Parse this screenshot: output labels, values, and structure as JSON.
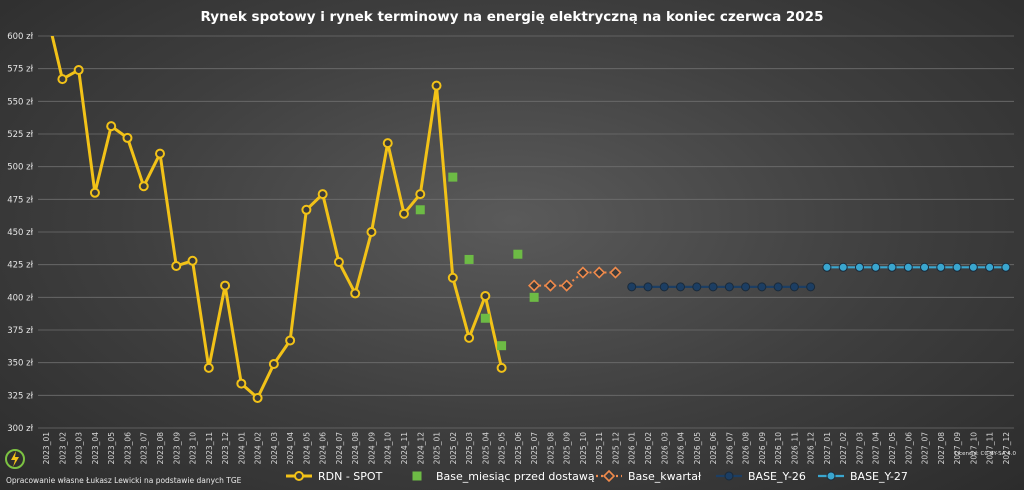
{
  "chart_data": {
    "type": "line",
    "title": "Rynek spotowy i rynek terminowy na energię elektryczną na koniec czerwca 2025",
    "ylim": [
      300,
      600
    ],
    "yticks": [
      300,
      325,
      350,
      375,
      400,
      425,
      450,
      475,
      500,
      525,
      550,
      575,
      600
    ],
    "ytick_suffix": " zł",
    "grid": true,
    "legend_position": "bottom",
    "categories": [
      "2023_01",
      "2023_02",
      "2023_03",
      "2023_04",
      "2023_05",
      "2023_06",
      "2023_07",
      "2023_08",
      "2023_09",
      "2023_10",
      "2023_11",
      "2023_12",
      "2024_01",
      "2024_02",
      "2024_03",
      "2024_04",
      "2024_05",
      "2024_06",
      "2024_07",
      "2024_08",
      "2024_09",
      "2024_10",
      "2024_11",
      "2024_12",
      "2025_01",
      "2025_02",
      "2025_03",
      "2025_04",
      "2025_05",
      "2025_06",
      "2025_07",
      "2025_08",
      "2025_09",
      "2025_10",
      "2025_11",
      "2025_12",
      "2026_01",
      "2026_02",
      "2026_03",
      "2026_04",
      "2026_05",
      "2026_06",
      "2026_07",
      "2026_08",
      "2026_09",
      "2026_10",
      "2026_11",
      "2026_12",
      "2027_01",
      "2027_02",
      "2027_03",
      "2027_04",
      "2027_05",
      "2027_06",
      "2027_07",
      "2027_08",
      "2027_09",
      "2027_10",
      "2027_11",
      "2027_12"
    ],
    "series": [
      {
        "name": "RDN - SPOT",
        "color": "#f2c218",
        "marker": "circle",
        "line": "solid",
        "values": [
          620,
          567,
          574,
          480,
          531,
          522,
          485,
          510,
          424,
          428,
          346,
          409,
          334,
          323,
          349,
          367,
          467,
          479,
          427,
          403,
          450,
          518,
          464,
          479,
          562,
          415,
          369,
          401,
          346,
          null,
          null,
          null,
          null,
          null,
          null,
          null,
          null,
          null,
          null,
          null,
          null,
          null,
          null,
          null,
          null,
          null,
          null,
          null,
          null,
          null,
          null,
          null,
          null,
          null,
          null,
          null,
          null,
          null,
          null,
          null
        ]
      },
      {
        "name": "Base_miesiąc przed dostawą",
        "color": "#6dbb45",
        "marker": "square",
        "line": "none",
        "values": [
          null,
          null,
          null,
          null,
          null,
          null,
          null,
          null,
          null,
          null,
          null,
          null,
          null,
          null,
          null,
          null,
          null,
          null,
          null,
          null,
          null,
          null,
          null,
          467,
          null,
          492,
          429,
          384,
          363,
          433,
          400,
          null,
          null,
          null,
          null,
          null,
          null,
          null,
          null,
          null,
          null,
          null,
          null,
          null,
          null,
          null,
          null,
          null,
          null,
          null,
          null,
          null,
          null,
          null,
          null,
          null,
          null,
          null,
          null,
          null
        ]
      },
      {
        "name": "Base_kwartał",
        "color": "#f08a4b",
        "marker": "diamond",
        "line": "dotted",
        "values": [
          null,
          null,
          null,
          null,
          null,
          null,
          null,
          null,
          null,
          null,
          null,
          null,
          null,
          null,
          null,
          null,
          null,
          null,
          null,
          null,
          null,
          null,
          null,
          null,
          null,
          null,
          null,
          null,
          null,
          null,
          409,
          409,
          409,
          419,
          419,
          419,
          null,
          null,
          null,
          null,
          null,
          null,
          null,
          null,
          null,
          null,
          null,
          null,
          null,
          null,
          null,
          null,
          null,
          null,
          null,
          null,
          null,
          null,
          null,
          null
        ]
      },
      {
        "name": "BASE_Y-26",
        "color": "#1c3e63",
        "marker": "circle",
        "line": "solid",
        "values": [
          null,
          null,
          null,
          null,
          null,
          null,
          null,
          null,
          null,
          null,
          null,
          null,
          null,
          null,
          null,
          null,
          null,
          null,
          null,
          null,
          null,
          null,
          null,
          null,
          null,
          null,
          null,
          null,
          null,
          null,
          null,
          null,
          null,
          null,
          null,
          null,
          408,
          408,
          408,
          408,
          408,
          408,
          408,
          408,
          408,
          408,
          408,
          408,
          null,
          null,
          null,
          null,
          null,
          null,
          null,
          null,
          null,
          null,
          null,
          null
        ]
      },
      {
        "name": "BASE_Y-27",
        "color": "#3aa6cf",
        "marker": "circle",
        "line": "solid",
        "values": [
          null,
          null,
          null,
          null,
          null,
          null,
          null,
          null,
          null,
          null,
          null,
          null,
          null,
          null,
          null,
          null,
          null,
          null,
          null,
          null,
          null,
          null,
          null,
          null,
          null,
          null,
          null,
          null,
          null,
          null,
          null,
          null,
          null,
          null,
          null,
          null,
          null,
          null,
          null,
          null,
          null,
          null,
          null,
          null,
          null,
          null,
          null,
          null,
          423,
          423,
          423,
          423,
          423,
          423,
          423,
          423,
          423,
          423,
          423,
          423
        ]
      }
    ]
  },
  "footer": {
    "source": "Opracowanie własne Łukasz Lewicki na podstawie danych TGE",
    "license": "Licencja: CC-BY-SA 4.0",
    "logo_icon": "lightning-leaf-logo-icon"
  }
}
